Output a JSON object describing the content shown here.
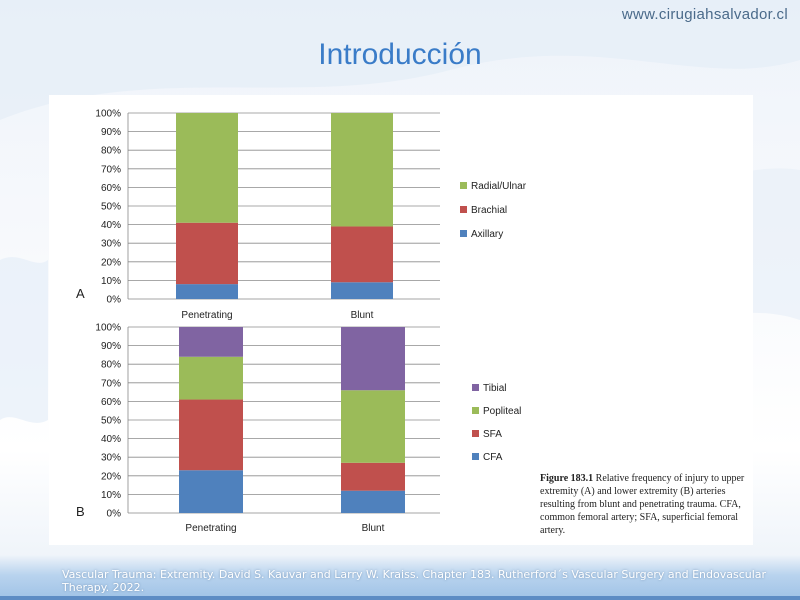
{
  "header": {
    "site": "www.cirugiahsalvador.cl",
    "title": "Introducción"
  },
  "caption": {
    "label": "Figure 183.1",
    "text": "Relative frequency of injury to upper extremity (A) and lower extremity (B) arteries resulting from blunt and penetrating trauma. CFA, common femoral artery; SFA, superficial femoral artery."
  },
  "footer": {
    "citation": "Vascular Trauma: Extremity. David S. Kauvar and Larry W. Kraiss. Chapter 183.  Rutherford´s Vascular Surgery and Endovascular Therapy. 2022."
  },
  "colors": {
    "green": "#9bbb59",
    "red": "#c0504d",
    "blue": "#4f81bd",
    "purple": "#8064a2"
  },
  "chart_data": [
    {
      "type": "bar",
      "stacked": true,
      "panel_label": "A",
      "categories": [
        "Penetrating",
        "Blunt"
      ],
      "series": [
        {
          "name": "Axillary",
          "color": "#4f81bd",
          "values": [
            8,
            9
          ]
        },
        {
          "name": "Brachial",
          "color": "#c0504d",
          "values": [
            33,
            30
          ]
        },
        {
          "name": "Radial/Ulnar",
          "color": "#9bbb59",
          "values": [
            59,
            61
          ]
        }
      ],
      "ylim": [
        0,
        100
      ],
      "yticks": [
        "0%",
        "10%",
        "20%",
        "30%",
        "40%",
        "50%",
        "60%",
        "70%",
        "80%",
        "90%",
        "100%"
      ],
      "legend_order": [
        "Radial/Ulnar",
        "Brachial",
        "Axillary"
      ],
      "legend": "right",
      "grid": true
    },
    {
      "type": "bar",
      "stacked": true,
      "panel_label": "B",
      "categories": [
        "Penetrating",
        "Blunt"
      ],
      "series": [
        {
          "name": "CFA",
          "color": "#4f81bd",
          "values": [
            23,
            12
          ]
        },
        {
          "name": "SFA",
          "color": "#c0504d",
          "values": [
            38,
            15
          ]
        },
        {
          "name": "Popliteal",
          "color": "#9bbb59",
          "values": [
            23,
            39
          ]
        },
        {
          "name": "Tibial",
          "color": "#8064a2",
          "values": [
            16,
            34
          ]
        }
      ],
      "ylim": [
        0,
        100
      ],
      "yticks": [
        "0%",
        "10%",
        "20%",
        "30%",
        "40%",
        "50%",
        "60%",
        "70%",
        "80%",
        "90%",
        "100%"
      ],
      "legend_order": [
        "Tibial",
        "Popliteal",
        "SFA",
        "CFA"
      ],
      "legend": "right",
      "grid": true
    }
  ]
}
